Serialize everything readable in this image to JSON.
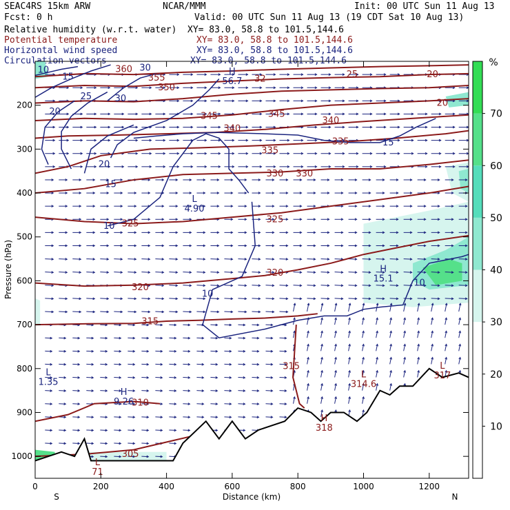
{
  "header": {
    "model": "SEAC4RS 15km ARW",
    "org": "NCAR/MMM",
    "init": "Init: 00 UTC Sun 11 Aug 13",
    "fcst": "Fcst:    0 h",
    "valid": "Valid: 00 UTC Sun 11 Aug 13 (19 CDT Sat 10 Aug 13)",
    "fields": [
      {
        "name": "Relative humidity (w.r.t. water)",
        "xy": "XY=  83.0, 58.8 to 101.5,144.6",
        "color": "#000000"
      },
      {
        "name": "Potential temperature",
        "xy": "XY=  83.0, 58.8 to 101.5,144.6",
        "color": "#8b1a1a"
      },
      {
        "name": "Horizontal wind speed",
        "xy": "XY=  83.0, 58.8 to 101.5,144.6",
        "color": "#1a237e"
      },
      {
        "name": "Circulation vectors",
        "xy": "XY=  83.0, 58.8 to 101.5,144.6",
        "color": "#1a237e"
      }
    ]
  },
  "chart_data": {
    "type": "cross-section",
    "xlabel": "Distance (km)",
    "ylabel": "Pressure (hPa)",
    "xlim": [
      0,
      1320
    ],
    "ylim": [
      1050,
      100
    ],
    "x_ticks": [
      0,
      200,
      400,
      600,
      800,
      1000,
      1200
    ],
    "y_ticks": [
      200,
      300,
      400,
      500,
      600,
      700,
      800,
      900,
      1000
    ],
    "x_end_labels": {
      "left": "S",
      "right": "N"
    },
    "colorbar": {
      "unit": "%",
      "ticks": [
        10,
        20,
        30,
        40,
        50,
        60,
        70
      ],
      "range": [
        0,
        80
      ],
      "colors": [
        "#ffffff",
        "#ffffff",
        "#ffffff",
        "#d6f5ee",
        "#8fe8d0",
        "#55ddbb",
        "#55e08a",
        "#33dd55"
      ]
    },
    "theta_contours": [
      {
        "label": "305",
        "points": [
          [
            0,
            1000
          ],
          [
            150,
            995
          ],
          [
            300,
            985
          ],
          [
            500,
            950
          ]
        ]
      },
      {
        "label": "310",
        "points": [
          [
            0,
            920
          ],
          [
            100,
            905
          ],
          [
            180,
            880
          ],
          [
            300,
            875
          ],
          [
            380,
            880
          ]
        ]
      },
      {
        "label": "315",
        "points": [
          [
            0,
            700
          ],
          [
            150,
            698
          ],
          [
            300,
            697
          ],
          [
            400,
            692
          ],
          [
            500,
            690
          ],
          [
            600,
            687
          ],
          [
            700,
            685
          ],
          [
            800,
            680
          ],
          [
            860,
            675
          ]
        ]
      },
      {
        "label": "315",
        "points": [
          [
            795,
            700
          ],
          [
            785,
            820
          ],
          [
            805,
            880
          ],
          [
            820,
            890
          ]
        ]
      },
      {
        "label": "320",
        "points": [
          [
            0,
            605
          ],
          [
            150,
            612
          ],
          [
            300,
            610
          ],
          [
            450,
            605
          ],
          [
            600,
            595
          ],
          [
            700,
            588
          ],
          [
            800,
            575
          ],
          [
            900,
            560
          ],
          [
            1000,
            540
          ],
          [
            1100,
            525
          ],
          [
            1200,
            510
          ],
          [
            1320,
            497
          ]
        ]
      },
      {
        "label": "325",
        "points": [
          [
            0,
            455
          ],
          [
            150,
            465
          ],
          [
            300,
            470
          ],
          [
            450,
            465
          ],
          [
            600,
            455
          ],
          [
            750,
            445
          ],
          [
            900,
            430
          ],
          [
            1050,
            415
          ],
          [
            1200,
            400
          ],
          [
            1320,
            385
          ]
        ]
      },
      {
        "label": "330",
        "points": [
          [
            0,
            400
          ],
          [
            150,
            390
          ],
          [
            300,
            370
          ],
          [
            450,
            358
          ],
          [
            600,
            355
          ],
          [
            750,
            352
          ],
          [
            900,
            345
          ],
          [
            1050,
            345
          ],
          [
            1200,
            335
          ],
          [
            1320,
            325
          ]
        ]
      },
      {
        "label": "335",
        "points": [
          [
            0,
            355
          ],
          [
            100,
            340
          ],
          [
            200,
            315
          ],
          [
            350,
            300
          ],
          [
            500,
            297
          ],
          [
            650,
            293
          ],
          [
            800,
            288
          ],
          [
            950,
            283
          ],
          [
            1100,
            275
          ],
          [
            1250,
            265
          ],
          [
            1320,
            258
          ]
        ]
      },
      {
        "label": "340",
        "points": [
          [
            0,
            275
          ],
          [
            100,
            270
          ],
          [
            250,
            268
          ],
          [
            400,
            265
          ],
          [
            550,
            262
          ],
          [
            700,
            255
          ],
          [
            850,
            245
          ],
          [
            1000,
            237
          ],
          [
            1150,
            230
          ],
          [
            1320,
            222
          ]
        ]
      },
      {
        "label": "345",
        "points": [
          [
            0,
            235
          ],
          [
            150,
            230
          ],
          [
            300,
            232
          ],
          [
            450,
            230
          ],
          [
            600,
            222
          ],
          [
            750,
            210
          ],
          [
            900,
            200
          ],
          [
            1050,
            195
          ],
          [
            1200,
            190
          ],
          [
            1320,
            185
          ]
        ]
      },
      {
        "label": "350",
        "points": [
          [
            0,
            195
          ],
          [
            150,
            190
          ],
          [
            300,
            192
          ],
          [
            450,
            185
          ],
          [
            600,
            175
          ],
          [
            750,
            168
          ],
          [
            900,
            165
          ],
          [
            1050,
            162
          ],
          [
            1200,
            160
          ],
          [
            1320,
            155
          ]
        ]
      },
      {
        "label": "355",
        "points": [
          [
            0,
            160
          ],
          [
            150,
            155
          ],
          [
            300,
            157
          ],
          [
            450,
            150
          ],
          [
            600,
            145
          ],
          [
            750,
            140
          ],
          [
            900,
            137
          ],
          [
            1050,
            135
          ],
          [
            1200,
            130
          ],
          [
            1320,
            128
          ]
        ]
      },
      {
        "label": "360",
        "points": [
          [
            0,
            135
          ],
          [
            150,
            128
          ],
          [
            300,
            130
          ],
          [
            450,
            125
          ],
          [
            600,
            122
          ],
          [
            750,
            118
          ],
          [
            900,
            115
          ],
          [
            1050,
            112
          ],
          [
            1200,
            110
          ],
          [
            1320,
            108
          ]
        ]
      }
    ],
    "wind_contours": [
      {
        "label": "10",
        "points": [
          [
            0,
            132
          ],
          [
            40,
            125
          ],
          [
            80,
            118
          ],
          [
            130,
            112
          ]
        ]
      },
      {
        "label": "15",
        "points": [
          [
            0,
            182
          ],
          [
            50,
            160
          ],
          [
            110,
            140
          ],
          [
            170,
            122
          ],
          [
            230,
            108
          ]
        ]
      },
      {
        "label": "20",
        "points": [
          [
            40,
            335
          ],
          [
            20,
            300
          ],
          [
            30,
            250
          ],
          [
            70,
            215
          ],
          [
            120,
            190
          ]
        ]
      },
      {
        "label": "25",
        "points": [
          [
            110,
            345
          ],
          [
            80,
            300
          ],
          [
            80,
            260
          ],
          [
            110,
            225
          ],
          [
            160,
            195
          ],
          [
            220,
            170
          ]
        ]
      },
      {
        "label": "30",
        "points": [
          [
            220,
            190
          ],
          [
            270,
            160
          ],
          [
            320,
            138
          ],
          [
            370,
            128
          ]
        ]
      },
      {
        "label": "10",
        "points": [
          [
            230,
            320
          ],
          [
            250,
            290
          ],
          [
            300,
            262
          ],
          [
            400,
            235
          ],
          [
            480,
            200
          ],
          [
            530,
            165
          ],
          [
            560,
            140
          ]
        ]
      },
      {
        "label": "15",
        "points": [
          [
            150,
            355
          ],
          [
            170,
            300
          ],
          [
            220,
            270
          ],
          [
            300,
            245
          ]
        ]
      },
      {
        "label": "15",
        "points": [
          [
            300,
            275
          ],
          [
            370,
            270
          ],
          [
            450,
            265
          ],
          [
            550,
            262
          ],
          [
            700,
            265
          ],
          [
            800,
            268
          ],
          [
            880,
            280
          ],
          [
            960,
            285
          ],
          [
            1050,
            285
          ],
          [
            1110,
            270
          ],
          [
            1160,
            250
          ],
          [
            1220,
            230
          ]
        ]
      },
      {
        "label": "10",
        "points": [
          [
            650,
            400
          ],
          [
            620,
            370
          ],
          [
            590,
            345
          ],
          [
            590,
            300
          ],
          [
            560,
            275
          ],
          [
            520,
            265
          ],
          [
            480,
            280
          ],
          [
            420,
            340
          ],
          [
            380,
            410
          ],
          [
            300,
            460
          ],
          [
            220,
            475
          ]
        ]
      },
      {
        "label": "10",
        "points": [
          [
            660,
            420
          ],
          [
            670,
            520
          ],
          [
            630,
            590
          ],
          [
            540,
            620
          ],
          [
            510,
            700
          ],
          [
            560,
            730
          ],
          [
            700,
            710
          ],
          [
            800,
            690
          ],
          [
            880,
            680
          ],
          [
            950,
            680
          ],
          [
            1000,
            665
          ],
          [
            1050,
            660
          ],
          [
            1120,
            655
          ],
          [
            1150,
            600
          ],
          [
            1200,
            560
          ],
          [
            1300,
            545
          ],
          [
            1320,
            540
          ]
        ]
      }
    ],
    "theta_labels": [
      {
        "text": "360",
        "x": 270,
        "y": 118
      },
      {
        "text": "355",
        "x": 370,
        "y": 138
      },
      {
        "text": "350",
        "x": 400,
        "y": 160
      },
      {
        "text": "345",
        "x": 530,
        "y": 225
      },
      {
        "text": "340",
        "x": 600,
        "y": 253
      },
      {
        "text": "345",
        "x": 735,
        "y": 220
      },
      {
        "text": "340",
        "x": 900,
        "y": 235
      },
      {
        "text": "335",
        "x": 715,
        "y": 303
      },
      {
        "text": "335",
        "x": 930,
        "y": 283
      },
      {
        "text": "330",
        "x": 730,
        "y": 356
      },
      {
        "text": "330",
        "x": 820,
        "y": 356
      },
      {
        "text": "325",
        "x": 290,
        "y": 470
      },
      {
        "text": "325",
        "x": 730,
        "y": 460
      },
      {
        "text": "320",
        "x": 320,
        "y": 615
      },
      {
        "text": "320",
        "x": 730,
        "y": 582
      },
      {
        "text": "315",
        "x": 350,
        "y": 693
      },
      {
        "text": "315",
        "x": 780,
        "y": 795
      },
      {
        "text": "310",
        "x": 320,
        "y": 878
      },
      {
        "text": "305",
        "x": 290,
        "y": 995
      },
      {
        "text": "32",
        "x": 685,
        "y": 140
      },
      {
        "text": "25",
        "x": 965,
        "y": 130
      },
      {
        "text": "20",
        "x": 1210,
        "y": 130
      },
      {
        "text": "20",
        "x": 1240,
        "y": 195
      }
    ],
    "wind_labels": [
      {
        "text": "10",
        "x": 25,
        "y": 120
      },
      {
        "text": "15",
        "x": 100,
        "y": 135
      },
      {
        "text": "25",
        "x": 155,
        "y": 180
      },
      {
        "text": "30",
        "x": 260,
        "y": 185
      },
      {
        "text": "30",
        "x": 335,
        "y": 115
      },
      {
        "text": "20",
        "x": 60,
        "y": 215
      },
      {
        "text": "20",
        "x": 210,
        "y": 335
      },
      {
        "text": "15",
        "x": 230,
        "y": 380
      },
      {
        "text": "15",
        "x": 1075,
        "y": 285
      },
      {
        "text": "10",
        "x": 225,
        "y": 475
      },
      {
        "text": "10",
        "x": 525,
        "y": 630
      },
      {
        "text": "10",
        "x": 1170,
        "y": 605
      }
    ],
    "extrema": [
      {
        "type": "H",
        "value": "56.7",
        "x": 600,
        "y": 130,
        "field": "wind"
      },
      {
        "type": "L",
        "value": "4.90",
        "x": 485,
        "y": 420,
        "field": "wind"
      },
      {
        "type": "H",
        "value": "15.1",
        "x": 1060,
        "y": 580,
        "field": "wind"
      },
      {
        "type": "L",
        "value": "1.35",
        "x": 40,
        "y": 815,
        "field": "wind"
      },
      {
        "type": "H",
        "value": "9.26",
        "x": 270,
        "y": 860,
        "field": "wind"
      },
      {
        "type": "L",
        "value": "314.6",
        "x": 1000,
        "y": 820,
        "field": "theta"
      },
      {
        "type": "H",
        "value": "318",
        "x": 880,
        "y": 920,
        "field": "theta"
      },
      {
        "type": "L",
        "value": "317",
        "x": 1240,
        "y": 800,
        "field": "theta"
      },
      {
        "type": "L",
        "value": "71",
        "x": 190,
        "y": 1020,
        "field": "theta"
      }
    ],
    "terrain": [
      [
        0,
        1010
      ],
      [
        40,
        1000
      ],
      [
        80,
        990
      ],
      [
        120,
        1000
      ],
      [
        150,
        960
      ],
      [
        170,
        1010
      ],
      [
        200,
        1010
      ],
      [
        300,
        1010
      ],
      [
        420,
        1010
      ],
      [
        450,
        970
      ],
      [
        520,
        920
      ],
      [
        560,
        960
      ],
      [
        600,
        920
      ],
      [
        640,
        960
      ],
      [
        680,
        940
      ],
      [
        720,
        930
      ],
      [
        760,
        920
      ],
      [
        800,
        890
      ],
      [
        840,
        900
      ],
      [
        870,
        920
      ],
      [
        900,
        900
      ],
      [
        940,
        900
      ],
      [
        980,
        920
      ],
      [
        1010,
        900
      ],
      [
        1050,
        850
      ],
      [
        1080,
        860
      ],
      [
        1110,
        840
      ],
      [
        1150,
        840
      ],
      [
        1200,
        800
      ],
      [
        1240,
        820
      ],
      [
        1290,
        810
      ],
      [
        1320,
        820
      ]
    ]
  }
}
